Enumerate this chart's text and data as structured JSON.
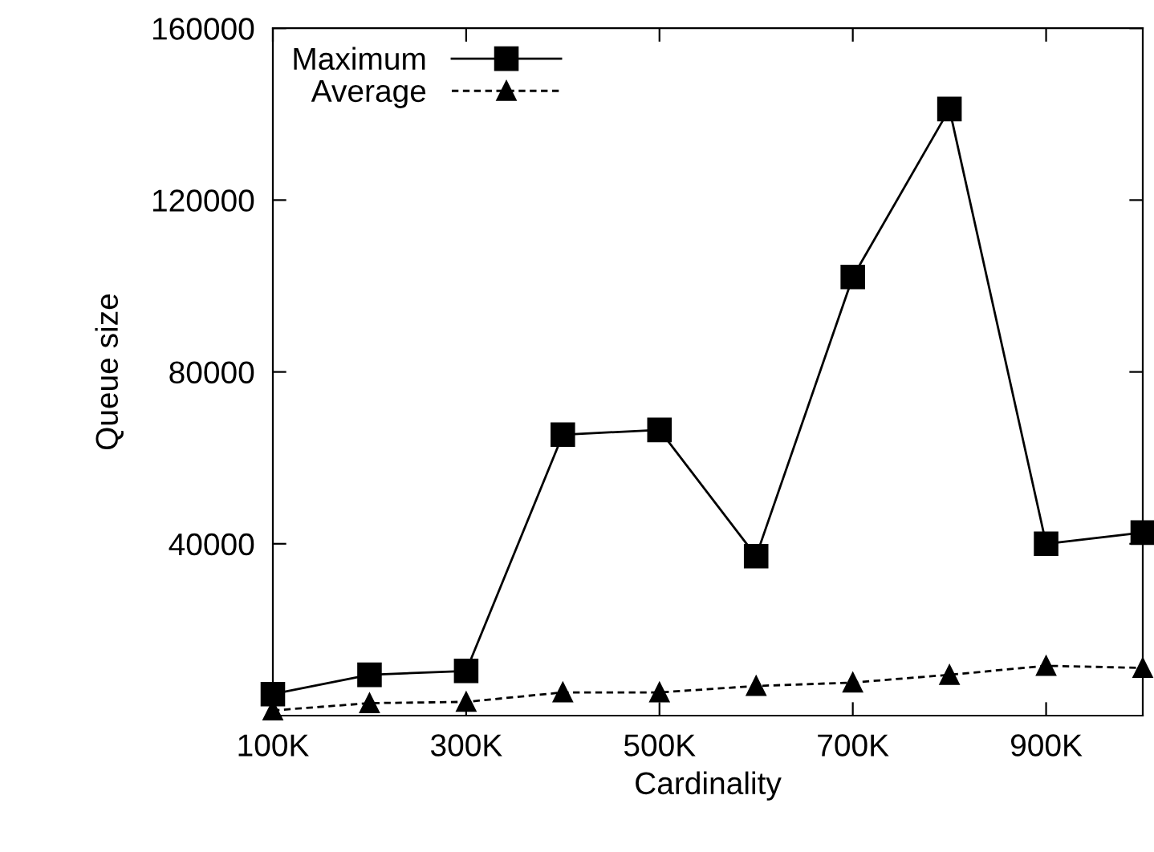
{
  "chart_data": {
    "type": "line",
    "xlabel": "Cardinality",
    "ylabel": "Queue size",
    "x": [
      100,
      200,
      300,
      400,
      500,
      600,
      700,
      800,
      900,
      1000
    ],
    "series": [
      {
        "name": "Maximum",
        "color": "#000000",
        "marker": "square",
        "line_style": "solid",
        "values": [
          5000,
          9500,
          10400,
          65400,
          66500,
          37100,
          102100,
          141200,
          40000,
          42600
        ]
      },
      {
        "name": "Average",
        "color": "#000000",
        "marker": "triangle",
        "line_style": "dashed",
        "values": [
          1200,
          2900,
          3200,
          5400,
          5400,
          6900,
          7700,
          9500,
          11600,
          11100
        ]
      }
    ],
    "xlim": [
      100,
      1000
    ],
    "ylim": [
      0,
      160000
    ],
    "xticks": [
      {
        "value": 100,
        "label": "100K"
      },
      {
        "value": 300,
        "label": "300K"
      },
      {
        "value": 500,
        "label": "500K"
      },
      {
        "value": 700,
        "label": "700K"
      },
      {
        "value": 900,
        "label": "900K"
      }
    ],
    "yticks": [
      40000,
      80000,
      120000,
      160000
    ],
    "grid": false,
    "legend": "top left"
  }
}
